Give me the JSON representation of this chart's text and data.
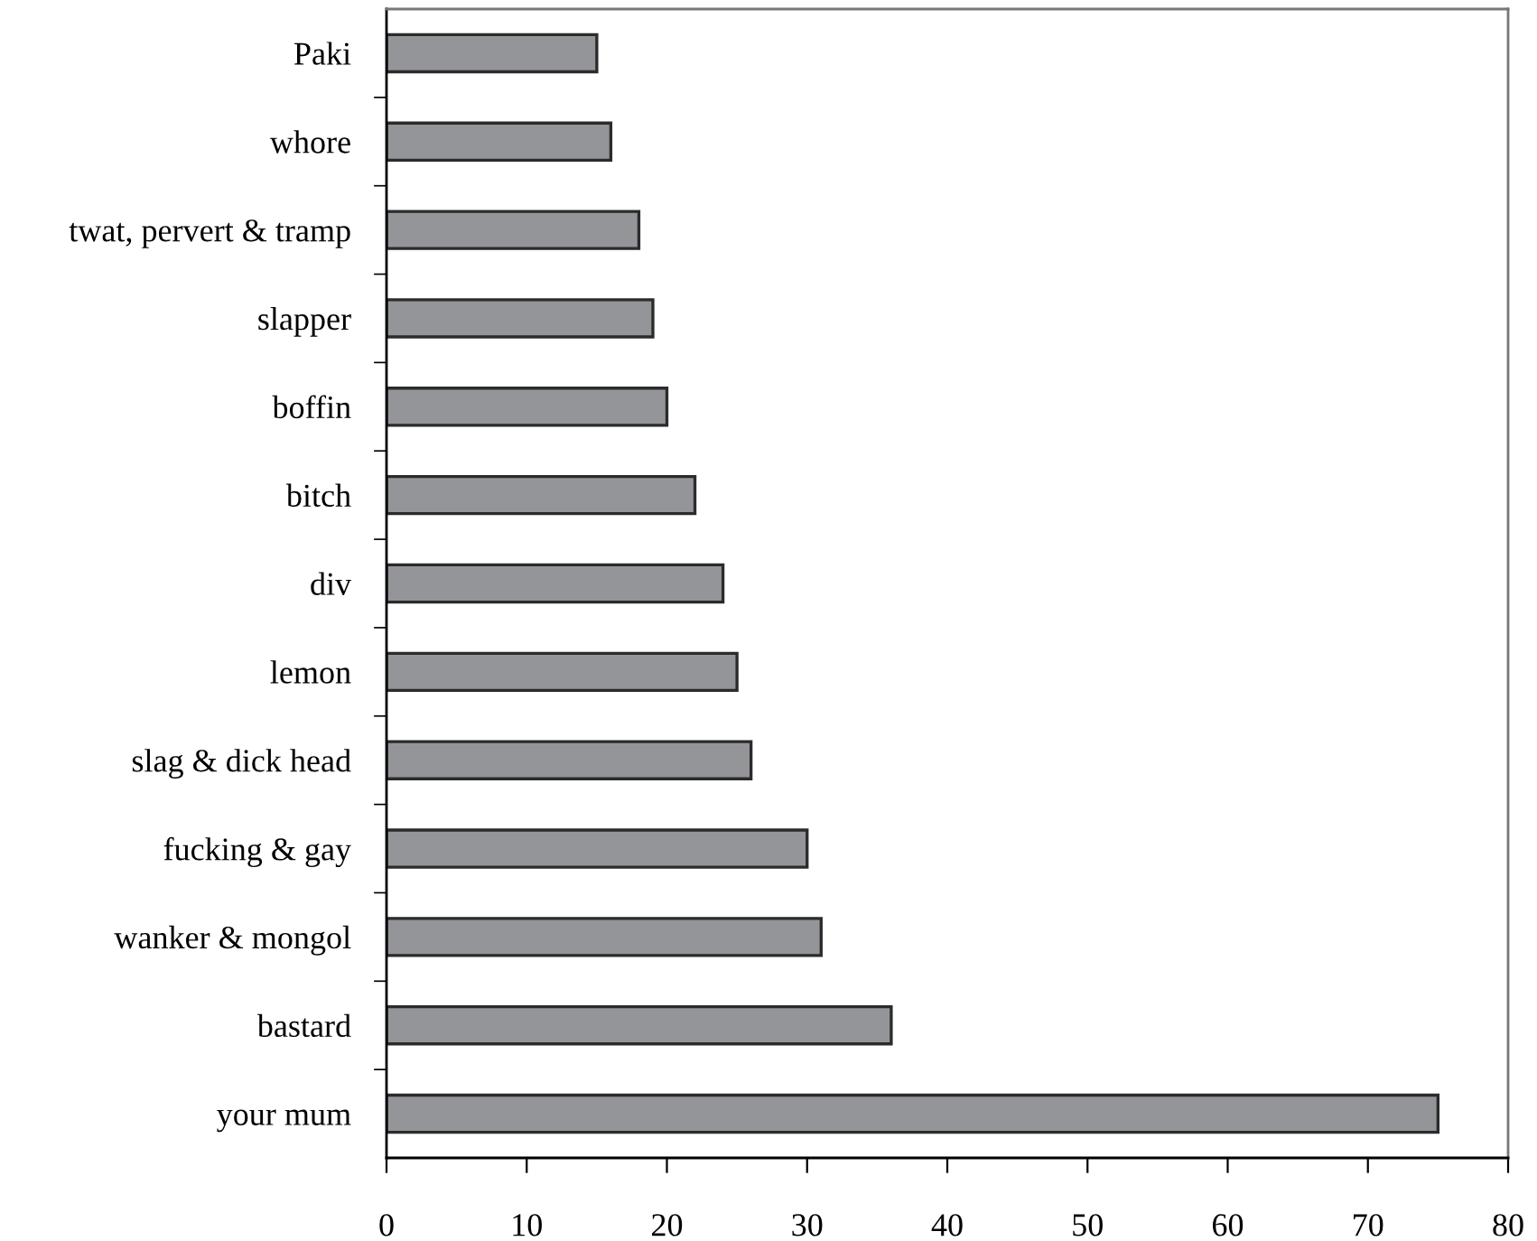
{
  "chart_data": {
    "type": "bar",
    "orientation": "horizontal",
    "categories": [
      "Paki",
      "whore",
      "twat, pervert & tramp",
      "slapper",
      "boffin",
      "bitch",
      "div",
      "lemon",
      "slag & dick head",
      "fucking & gay",
      "wanker & mongol",
      "bastard",
      "your mum"
    ],
    "values": [
      15,
      16,
      18,
      19,
      20,
      22,
      24,
      25,
      26,
      30,
      31,
      36,
      75
    ],
    "color": "#939598",
    "xlim": [
      0,
      80
    ],
    "xticks": [
      0,
      10,
      20,
      30,
      40,
      50,
      60,
      70,
      80
    ],
    "grid": false,
    "legend": false
  }
}
